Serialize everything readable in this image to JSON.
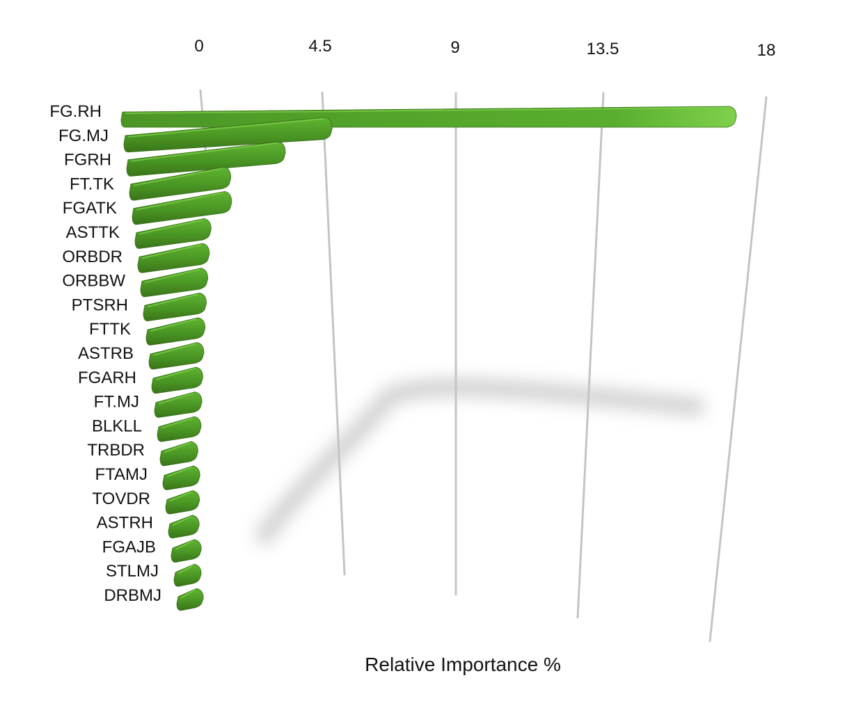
{
  "chart_data": {
    "type": "bar",
    "orientation": "horizontal",
    "style": "3d-perspective",
    "title": "",
    "xlabel": "Relative Importance %",
    "ylabel": "",
    "xlim": [
      0,
      18
    ],
    "x_ticks": [
      "0",
      "4.5",
      "9",
      "13.5",
      "18"
    ],
    "x_tick_values": [
      0,
      4.5,
      9,
      13.5,
      18
    ],
    "grid": true,
    "legend": "none",
    "categories": [
      "FG.RH",
      "FG.MJ",
      "FGRH",
      "FT.TK",
      "FGATK",
      "ASTTK",
      "ORBDR",
      "ORBBW",
      "PTSRH",
      "FTTK",
      "ASTRB",
      "FGARH",
      "FT.MJ",
      "BLKLL",
      "TRBDR",
      "FTAMJ",
      "TOVDR",
      "ASTRH",
      "FGAJB",
      "STLMJ",
      "DRBMJ"
    ],
    "values": [
      18.0,
      6.1,
      4.7,
      3.0,
      3.0,
      2.3,
      2.2,
      2.1,
      2.0,
      1.9,
      1.8,
      1.7,
      1.6,
      1.5,
      1.3,
      1.3,
      1.2,
      1.1,
      1.1,
      1.0,
      1.0
    ],
    "colors": {
      "bar_dark": "#3f7d1c",
      "bar_mid": "#52a12a",
      "bar_light": "#6cc23c",
      "gridline": "#c4c4c4"
    }
  }
}
